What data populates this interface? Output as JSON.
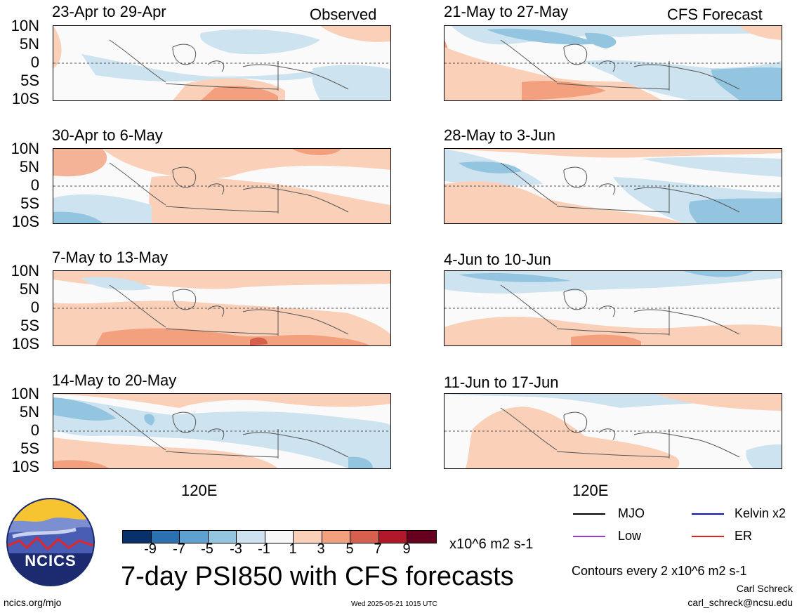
{
  "chart_data": {
    "type": "heatmap",
    "title": "7-day PSI850 with CFS forecasts",
    "units": "x10^6 m2 s-1",
    "colorbar": {
      "ticks": [
        "-9",
        "-7",
        "-5",
        "-3",
        "-1",
        "1",
        "3",
        "5",
        "7",
        "9"
      ],
      "colors": [
        "#08306b",
        "#2b71b1",
        "#5ca1d0",
        "#93c5e0",
        "#cde3f0",
        "#f7f7f7",
        "#fbd0b9",
        "#f3a07e",
        "#d6604d",
        "#b2182b",
        "#67001f"
      ]
    },
    "y_ticks": [
      "10N",
      "5N",
      "0",
      "5S",
      "10S"
    ],
    "x_ticks": [
      "120E"
    ],
    "panels": [
      {
        "title": "23-Apr to 29-Apr",
        "corner": "Observed",
        "column": "left"
      },
      {
        "title": "30-Apr to 6-May",
        "column": "left"
      },
      {
        "title": "7-May to 13-May",
        "column": "left"
      },
      {
        "title": "14-May to 20-May",
        "column": "left"
      },
      {
        "title": "21-May to 27-May",
        "corner": "CFS Forecast",
        "column": "right"
      },
      {
        "title": "28-May to 3-Jun",
        "column": "right"
      },
      {
        "title": "4-Jun to 10-Jun",
        "column": "right"
      },
      {
        "title": "11-Jun to 17-Jun",
        "column": "right"
      }
    ]
  },
  "legend": [
    {
      "label": "MJO",
      "color": "#000000"
    },
    {
      "label": "Kelvin x2",
      "color": "#1010d0"
    },
    {
      "label": "Low",
      "color": "#9a3ad6"
    },
    {
      "label": "ER",
      "color": "#e0201c"
    }
  ],
  "contour_note": "Contours every 2 x10^6 m2 s-1",
  "logo_text": "NCICS",
  "footer": {
    "url": "ncics.org/mjo",
    "timestamp": "Wed 2025-05-21 1015 UTC",
    "author": "Carl Schreck",
    "email": "carl_schreck@ncsu.edu"
  }
}
